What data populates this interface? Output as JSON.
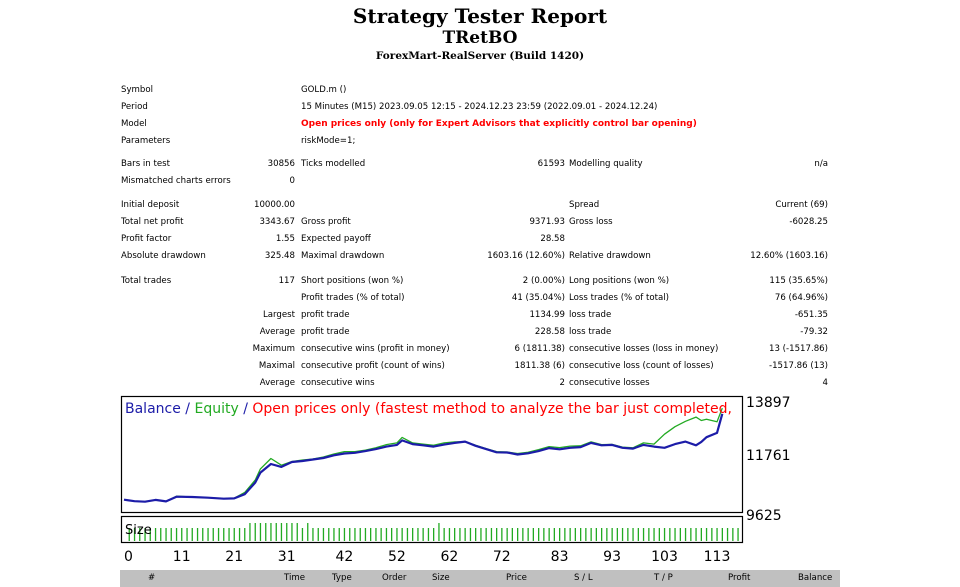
{
  "header": {
    "title": "Strategy Tester Report",
    "subtitle": "TRetBO",
    "server": "ForexMart-RealServer (Build 1420)"
  },
  "settings": {
    "symbol_label": "Symbol",
    "symbol_value": "GOLD.m ()",
    "period_label": "Period",
    "period_value": "15 Minutes (M15) 2023.09.05 12:15 - 2024.12.23 23:59 (2022.09.01 - 2024.12.24)",
    "model_label": "Model",
    "model_value": "Open prices only (only for Expert Advisors that explicitly control bar opening)",
    "parameters_label": "Parameters",
    "parameters_value": "riskMode=1;"
  },
  "stats": {
    "bars_label": "Bars in test",
    "bars_value": "30856",
    "ticks_label": "Ticks modelled",
    "ticks_value": "61593",
    "quality_label": "Modelling quality",
    "quality_value": "n/a",
    "mismatch_label": "Mismatched charts errors",
    "mismatch_value": "0",
    "deposit_label": "Initial deposit",
    "deposit_value": "10000.00",
    "spread_label": "Spread",
    "spread_value": "Current (69)",
    "net_label": "Total net profit",
    "net_value": "3343.67",
    "gross_profit_label": "Gross profit",
    "gross_profit_value": "9371.93",
    "gross_loss_label": "Gross loss",
    "gross_loss_value": "-6028.25",
    "pf_label": "Profit factor",
    "pf_value": "1.55",
    "payoff_label": "Expected payoff",
    "payoff_value": "28.58",
    "abs_dd_label": "Absolute drawdown",
    "abs_dd_value": "325.48",
    "max_dd_label": "Maximal drawdown",
    "max_dd_value": "1603.16 (12.60%)",
    "rel_dd_label": "Relative drawdown",
    "rel_dd_value": "12.60% (1603.16)",
    "trades_label": "Total trades",
    "trades_value": "117",
    "short_label": "Short positions (won %)",
    "short_value": "2 (0.00%)",
    "long_label": "Long positions (won %)",
    "long_value": "115 (35.65%)",
    "profit_trades_label": "Profit trades (% of total)",
    "profit_trades_value": "41 (35.04%)",
    "loss_trades_label": "Loss trades (% of total)",
    "loss_trades_value": "76 (64.96%)",
    "largest_label": "Largest",
    "largest_profit_label": "profit trade",
    "largest_profit_value": "1134.99",
    "largest_loss_label": "loss trade",
    "largest_loss_value": "-651.35",
    "average_label": "Average",
    "average_profit_label": "profit trade",
    "average_profit_value": "228.58",
    "average_loss_label": "loss trade",
    "average_loss_value": "-79.32",
    "maximum_label": "Maximum",
    "max_wins_label": "consecutive wins (profit in money)",
    "max_wins_value": "6 (1811.38)",
    "max_losses_label": "consecutive losses (loss in money)",
    "max_losses_value": "13 (-1517.86)",
    "maximal_label": "Maximal",
    "maximal_profit_label": "consecutive profit (count of wins)",
    "maximal_profit_value": "1811.38 (6)",
    "maximal_loss_label": "consecutive loss (count of losses)",
    "maximal_loss_value": "-1517.86 (13)",
    "avg2_label": "Average",
    "avg_wins_label": "consecutive wins",
    "avg_wins_value": "2",
    "avg_losses_label": "consecutive losses",
    "avg_losses_value": "4"
  },
  "chart_data": {
    "type": "line",
    "legend": {
      "balance": "Balance",
      "sep1": " / ",
      "equity": "Equity",
      "sep2": " / ",
      "note": "Open prices only (fastest method to analyze the bar just completed,"
    },
    "colors": {
      "balance": "#1c1ca8",
      "equity": "#22aa22",
      "note": "#ff0000",
      "size": "#22aa22"
    },
    "y_ticks": [
      "13897",
      "11761",
      "9625"
    ],
    "ylim": [
      9625,
      13897
    ],
    "x_ticks": [
      0,
      11,
      21,
      31,
      42,
      52,
      62,
      72,
      83,
      93,
      103,
      113
    ],
    "xlim": [
      0,
      117
    ],
    "size_label": "Size",
    "series": [
      {
        "name": "Balance",
        "x": [
          0,
          2,
          4,
          6,
          8,
          10,
          13,
          16,
          19,
          21,
          23,
          25,
          26,
          28,
          30,
          32,
          34,
          36,
          38,
          40,
          42,
          44,
          46,
          48,
          50,
          52,
          53,
          55,
          57,
          59,
          61,
          63,
          65,
          67,
          69,
          71,
          73,
          75,
          77,
          79,
          81,
          83,
          85,
          87,
          89,
          91,
          93,
          95,
          97,
          99,
          101,
          103,
          105,
          107,
          109,
          110,
          111,
          113,
          114
        ],
        "y": [
          9960,
          9900,
          9880,
          9950,
          9890,
          10080,
          10070,
          10040,
          10000,
          10010,
          10180,
          10650,
          11050,
          11400,
          11280,
          11480,
          11520,
          11580,
          11640,
          11750,
          11820,
          11850,
          11920,
          12000,
          12100,
          12170,
          12350,
          12200,
          12150,
          12100,
          12180,
          12250,
          12300,
          12130,
          12000,
          11870,
          11860,
          11780,
          11830,
          11920,
          12040,
          11990,
          12050,
          12080,
          12250,
          12150,
          12170,
          12050,
          12020,
          12170,
          12100,
          12050,
          12200,
          12300,
          12150,
          12290,
          12480,
          12650,
          13420
        ]
      },
      {
        "name": "Equity",
        "x": [
          0,
          2,
          4,
          6,
          8,
          10,
          13,
          16,
          19,
          21,
          23,
          25,
          26,
          28,
          30,
          32,
          34,
          36,
          38,
          40,
          42,
          44,
          46,
          48,
          50,
          52,
          53,
          55,
          57,
          59,
          61,
          63,
          65,
          67,
          69,
          71,
          73,
          75,
          77,
          79,
          81,
          83,
          85,
          87,
          89,
          91,
          93,
          95,
          97,
          99,
          101,
          103,
          105,
          107,
          109,
          110,
          111,
          113,
          114
        ],
        "y": [
          9960,
          9900,
          9880,
          9950,
          9890,
          10100,
          10070,
          10040,
          10000,
          10020,
          10250,
          10750,
          11200,
          11620,
          11350,
          11500,
          11560,
          11600,
          11680,
          11800,
          11900,
          11900,
          11960,
          12050,
          12180,
          12250,
          12470,
          12250,
          12200,
          12150,
          12250,
          12290,
          12300,
          12150,
          12020,
          11900,
          11880,
          11820,
          11870,
          11980,
          12100,
          12060,
          12120,
          12130,
          12290,
          12180,
          12190,
          12080,
          12050,
          12250,
          12200,
          12600,
          12900,
          13120,
          13290,
          13150,
          13200,
          13100,
          13650
        ]
      }
    ],
    "size_values": [
      1,
      1,
      1,
      1,
      1,
      1,
      1,
      1,
      1,
      1,
      1,
      1,
      1,
      1,
      1,
      1,
      1,
      1,
      1,
      1,
      1,
      1,
      1,
      2,
      2,
      2,
      2,
      2,
      2,
      2,
      2,
      2,
      2,
      1,
      2,
      1,
      1,
      1,
      1,
      1,
      1,
      1,
      1,
      1,
      1,
      1,
      1,
      1,
      1,
      1,
      1,
      1,
      1,
      1,
      1,
      1,
      1,
      1,
      1,
      2,
      1,
      1,
      1,
      1,
      1,
      1,
      1,
      1,
      1,
      1,
      1,
      1,
      1,
      1,
      1,
      1,
      1,
      1,
      1,
      1,
      1,
      1,
      1,
      1,
      1,
      1,
      1,
      1,
      1,
      1,
      1,
      1,
      1,
      1,
      1,
      1,
      1,
      1,
      1,
      1,
      1,
      1,
      1,
      1,
      1,
      1,
      1,
      1,
      1,
      1,
      1,
      1,
      1,
      1,
      1,
      1,
      1
    ]
  },
  "table_header": [
    "#",
    "Time",
    "Type",
    "Order",
    "Size",
    "Price",
    "S / L",
    "T / P",
    "Profit",
    "Balance"
  ]
}
